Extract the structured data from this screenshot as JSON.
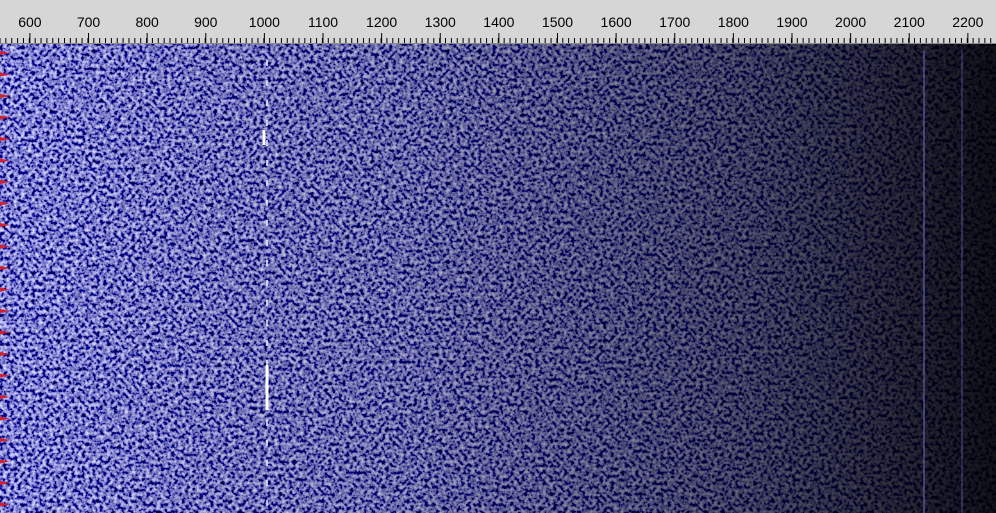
{
  "frequency_scale": {
    "xlim": [
      549,
      2248
    ],
    "xticks": [
      600,
      700,
      800,
      900,
      1000,
      1100,
      1200,
      1300,
      1400,
      1500,
      1600,
      1700,
      1800,
      1900,
      2000,
      2100,
      2200
    ]
  }
}
